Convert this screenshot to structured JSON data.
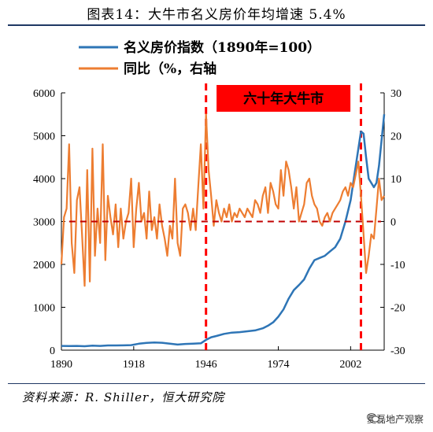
{
  "title": "图表14：大牛市名义房价年均增速 5.4%",
  "source": "资料来源：R. Shiller，恒大研究院",
  "watermark": "夏磊地产观察",
  "watermark_icon": "wechat-icon",
  "colors": {
    "index": "#2e75b6",
    "yoy": "#ed7d31",
    "annotation": "#ff0000",
    "zero": "#c00000"
  },
  "chart_data": {
    "type": "line",
    "legend_placement": "top-left",
    "grid": false,
    "annotation": {
      "label": "六十年大牛市",
      "start_year": 1946,
      "end_year": 2006
    },
    "x_axis": {
      "range": [
        1890,
        2015
      ],
      "ticks": [
        "1890",
        "1918",
        "1946",
        "1974",
        "2002"
      ],
      "tick_values": [
        1890,
        1918,
        1946,
        1974,
        2002
      ]
    },
    "y_left": {
      "range": [
        0,
        6000
      ],
      "ticks": [
        "0",
        "1000",
        "2000",
        "3000",
        "4000",
        "5000",
        "6000"
      ],
      "tick_values": [
        0,
        1000,
        2000,
        3000,
        4000,
        5000,
        6000
      ]
    },
    "y_right": {
      "range": [
        -30,
        30
      ],
      "ticks": [
        "-30",
        "-20",
        "-10",
        "0",
        "10",
        "20",
        "30"
      ],
      "tick_values": [
        -30,
        -20,
        -10,
        0,
        10,
        20,
        30
      ]
    },
    "series": [
      {
        "name": "名义房价指数（1890年=100）",
        "axis": "left",
        "color": "#2e75b6",
        "points": [
          [
            1890,
            100
          ],
          [
            1893,
            95
          ],
          [
            1896,
            100
          ],
          [
            1899,
            92
          ],
          [
            1902,
            105
          ],
          [
            1905,
            100
          ],
          [
            1908,
            110
          ],
          [
            1911,
            110
          ],
          [
            1914,
            112
          ],
          [
            1917,
            118
          ],
          [
            1920,
            150
          ],
          [
            1923,
            170
          ],
          [
            1926,
            178
          ],
          [
            1929,
            172
          ],
          [
            1932,
            150
          ],
          [
            1935,
            130
          ],
          [
            1938,
            145
          ],
          [
            1941,
            150
          ],
          [
            1944,
            160
          ],
          [
            1946,
            240
          ],
          [
            1948,
            300
          ],
          [
            1950,
            330
          ],
          [
            1953,
            380
          ],
          [
            1956,
            410
          ],
          [
            1959,
            420
          ],
          [
            1962,
            440
          ],
          [
            1965,
            460
          ],
          [
            1968,
            510
          ],
          [
            1970,
            570
          ],
          [
            1972,
            650
          ],
          [
            1974,
            780
          ],
          [
            1976,
            950
          ],
          [
            1978,
            1200
          ],
          [
            1980,
            1400
          ],
          [
            1982,
            1520
          ],
          [
            1984,
            1650
          ],
          [
            1986,
            1900
          ],
          [
            1988,
            2100
          ],
          [
            1990,
            2150
          ],
          [
            1992,
            2200
          ],
          [
            1994,
            2300
          ],
          [
            1996,
            2400
          ],
          [
            1998,
            2600
          ],
          [
            2000,
            3000
          ],
          [
            2002,
            3500
          ],
          [
            2004,
            4300
          ],
          [
            2006,
            5100
          ],
          [
            2007,
            5050
          ],
          [
            2008,
            4500
          ],
          [
            2009,
            4000
          ],
          [
            2011,
            3800
          ],
          [
            2012,
            3900
          ],
          [
            2013,
            4300
          ],
          [
            2015,
            5500
          ]
        ]
      },
      {
        "name": "同比（%，右轴",
        "axis": "right",
        "color": "#ed7d31",
        "points": [
          [
            1890,
            -10
          ],
          [
            1891,
            1
          ],
          [
            1892,
            3
          ],
          [
            1893,
            18
          ],
          [
            1894,
            -5
          ],
          [
            1895,
            -12
          ],
          [
            1896,
            5
          ],
          [
            1897,
            8
          ],
          [
            1898,
            -3
          ],
          [
            1899,
            -15
          ],
          [
            1900,
            12
          ],
          [
            1901,
            -14
          ],
          [
            1902,
            17
          ],
          [
            1903,
            -8
          ],
          [
            1904,
            3
          ],
          [
            1905,
            -5
          ],
          [
            1906,
            18
          ],
          [
            1907,
            -9
          ],
          [
            1908,
            6
          ],
          [
            1909,
            1
          ],
          [
            1910,
            -3
          ],
          [
            1911,
            4
          ],
          [
            1912,
            -6
          ],
          [
            1913,
            3
          ],
          [
            1914,
            -4
          ],
          [
            1915,
            0
          ],
          [
            1916,
            2
          ],
          [
            1917,
            10
          ],
          [
            1918,
            -6
          ],
          [
            1919,
            3
          ],
          [
            1920,
            9
          ],
          [
            1921,
            0
          ],
          [
            1922,
            2
          ],
          [
            1923,
            -4
          ],
          [
            1924,
            7
          ],
          [
            1925,
            -2
          ],
          [
            1926,
            1
          ],
          [
            1927,
            -4
          ],
          [
            1928,
            4
          ],
          [
            1929,
            -1
          ],
          [
            1930,
            -4
          ],
          [
            1931,
            -8
          ],
          [
            1932,
            -1
          ],
          [
            1933,
            -4
          ],
          [
            1934,
            10
          ],
          [
            1935,
            -5
          ],
          [
            1936,
            -8
          ],
          [
            1937,
            3
          ],
          [
            1938,
            4
          ],
          [
            1939,
            2
          ],
          [
            1940,
            -2
          ],
          [
            1941,
            3
          ],
          [
            1942,
            -2
          ],
          [
            1943,
            8
          ],
          [
            1944,
            18
          ],
          [
            1945,
            3
          ],
          [
            1946,
            25
          ],
          [
            1947,
            12
          ],
          [
            1948,
            6
          ],
          [
            1949,
            -1
          ],
          [
            1950,
            5
          ],
          [
            1951,
            2
          ],
          [
            1952,
            0
          ],
          [
            1953,
            3
          ],
          [
            1954,
            1
          ],
          [
            1955,
            4
          ],
          [
            1956,
            0
          ],
          [
            1957,
            2
          ],
          [
            1958,
            1
          ],
          [
            1959,
            3
          ],
          [
            1960,
            2
          ],
          [
            1961,
            1
          ],
          [
            1962,
            3
          ],
          [
            1963,
            2
          ],
          [
            1964,
            1
          ],
          [
            1965,
            5
          ],
          [
            1966,
            4
          ],
          [
            1967,
            2
          ],
          [
            1968,
            6
          ],
          [
            1969,
            8
          ],
          [
            1970,
            2
          ],
          [
            1971,
            9
          ],
          [
            1972,
            7
          ],
          [
            1973,
            4
          ],
          [
            1974,
            3
          ],
          [
            1975,
            12
          ],
          [
            1976,
            6
          ],
          [
            1977,
            14
          ],
          [
            1978,
            12
          ],
          [
            1979,
            8
          ],
          [
            1980,
            3
          ],
          [
            1981,
            8
          ],
          [
            1982,
            0
          ],
          [
            1983,
            2
          ],
          [
            1984,
            4
          ],
          [
            1985,
            9
          ],
          [
            1986,
            10
          ],
          [
            1987,
            6
          ],
          [
            1988,
            4
          ],
          [
            1989,
            3
          ],
          [
            1990,
            0
          ],
          [
            1991,
            -1
          ],
          [
            1992,
            1
          ],
          [
            1993,
            2
          ],
          [
            1994,
            0
          ],
          [
            1995,
            2
          ],
          [
            1996,
            3
          ],
          [
            1997,
            4
          ],
          [
            1998,
            5
          ],
          [
            1999,
            7
          ],
          [
            2000,
            8
          ],
          [
            2001,
            6
          ],
          [
            2002,
            9
          ],
          [
            2003,
            8
          ],
          [
            2004,
            11
          ],
          [
            2005,
            14
          ],
          [
            2006,
            6
          ],
          [
            2007,
            -3
          ],
          [
            2008,
            -12
          ],
          [
            2009,
            -8
          ],
          [
            2010,
            -3
          ],
          [
            2011,
            -4
          ],
          [
            2012,
            3
          ],
          [
            2013,
            10
          ],
          [
            2014,
            5
          ],
          [
            2015,
            6
          ]
        ]
      }
    ]
  }
}
